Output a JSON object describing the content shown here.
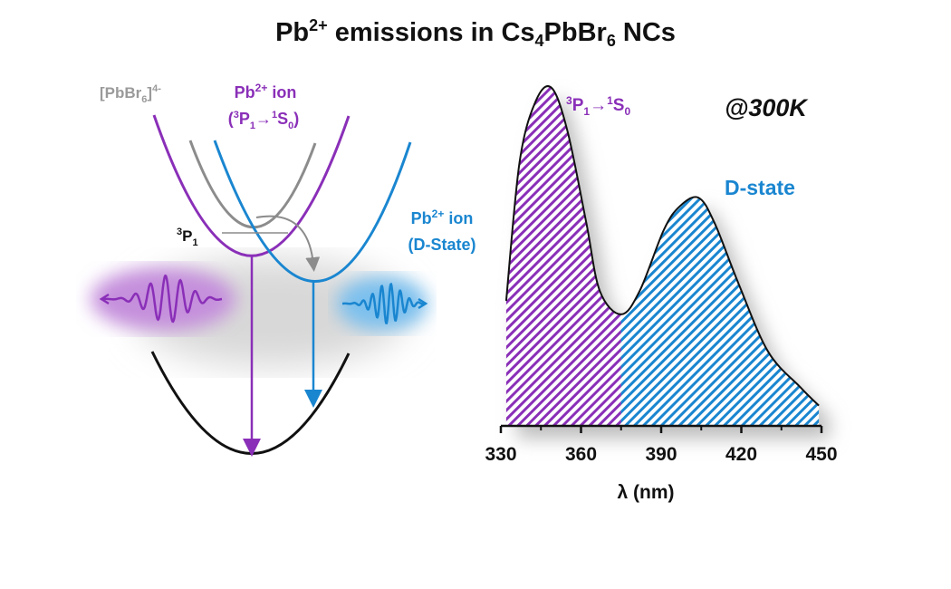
{
  "title": {
    "pre": "Pb",
    "sup": "2+",
    "mid": " emissions in Cs",
    "sub1": "4",
    "mid2": "PbBr",
    "sub2": "6",
    "post": " NCs"
  },
  "diagram": {
    "pbbr6_label": {
      "pre": "[PbBr",
      "sub": "6",
      "post": "]",
      "sup": "4-"
    },
    "pb_ion_purple": {
      "line1_pre": "Pb",
      "line1_sup": "2+",
      "line1_post": " ion",
      "open": "(",
      "s1": "3",
      "p": "P",
      "s2": "1",
      "arrow": "→",
      "s3": "1",
      "s": "S",
      "s4": "0",
      "close": ")"
    },
    "pb_ion_blue": {
      "line1_pre": "Pb",
      "line1_sup": "2+",
      "line1_post": " ion",
      "line2": "(D-State)"
    },
    "level_label": {
      "sup": "3",
      "main": "P",
      "sub": "1"
    }
  },
  "colors": {
    "purple": "#8a2fb8",
    "blue": "#1a86d0",
    "gray": "#8c8c8c",
    "black": "#111111"
  },
  "chart_data": {
    "type": "area",
    "title": "",
    "xlabel": "λ (nm)",
    "ylabel": "",
    "xlim": [
      330,
      450
    ],
    "xticks": [
      330,
      360,
      390,
      420,
      450
    ],
    "minor_xticks": [
      345,
      375,
      405,
      435
    ],
    "split_x": 375,
    "x": [
      332,
      337,
      343,
      349,
      355,
      362,
      367,
      375,
      382,
      391,
      397,
      404,
      410,
      419,
      430,
      442,
      449
    ],
    "y": [
      0.37,
      0.78,
      0.96,
      1.0,
      0.87,
      0.6,
      0.4,
      0.33,
      0.4,
      0.58,
      0.65,
      0.675,
      0.6,
      0.42,
      0.22,
      0.115,
      0.06
    ],
    "series": [
      {
        "name": "3P1→1S0",
        "range": [
          332,
          375
        ],
        "color": "#8a2fb8"
      },
      {
        "name": "D-state",
        "range": [
          375,
          449
        ],
        "color": "#1a86d0"
      }
    ],
    "annotations": {
      "peak1": {
        "s1": "3",
        "p": "P",
        "s2": "1",
        "arrow": "→",
        "s3": "1",
        "s": "S",
        "s4": "0"
      },
      "peak2": "D-state",
      "temperature": "@300K"
    }
  }
}
